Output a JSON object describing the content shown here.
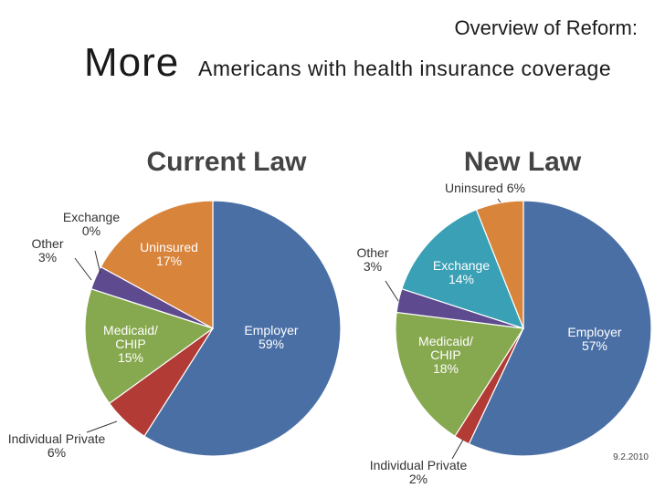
{
  "header": {
    "subtitle": "Overview of Reform:",
    "title_main": "More",
    "title_rest": "Americans with health insurance coverage"
  },
  "date_stamp": "9.2.2010",
  "chart_data": [
    {
      "type": "pie",
      "title": "Current Law",
      "slices": [
        {
          "label": "Employer",
          "value": 59,
          "value_text": "59%",
          "color": "#4a6fa5"
        },
        {
          "label": "Individual Private",
          "value": 6,
          "value_text": "6%",
          "color": "#b23b35"
        },
        {
          "label": "Medicaid/ CHIP",
          "value": 15,
          "value_text": "15%",
          "color": "#86a84e"
        },
        {
          "label": "Other",
          "value": 3,
          "value_text": "3%",
          "color": "#5e4a8e"
        },
        {
          "label": "Exchange",
          "value": 0,
          "value_text": "0%",
          "color": "#3aa0b5"
        },
        {
          "label": "Uninsured",
          "value": 17,
          "value_text": "17%",
          "color": "#d9843b"
        }
      ]
    },
    {
      "type": "pie",
      "title": "New Law",
      "slices": [
        {
          "label": "Employer",
          "value": 57,
          "value_text": "57%",
          "color": "#4a6fa5"
        },
        {
          "label": "Individual Private",
          "value": 2,
          "value_text": "2%",
          "color": "#b23b35"
        },
        {
          "label": "Medicaid/ CHIP",
          "value": 18,
          "value_text": "18%",
          "color": "#86a84e"
        },
        {
          "label": "Other",
          "value": 3,
          "value_text": "3%",
          "color": "#5e4a8e"
        },
        {
          "label": "Exchange",
          "value": 14,
          "value_text": "14%",
          "color": "#3aa0b5"
        },
        {
          "label": "Uninsured",
          "value": 6,
          "value_text": "6%",
          "color": "#d9843b"
        }
      ]
    }
  ]
}
